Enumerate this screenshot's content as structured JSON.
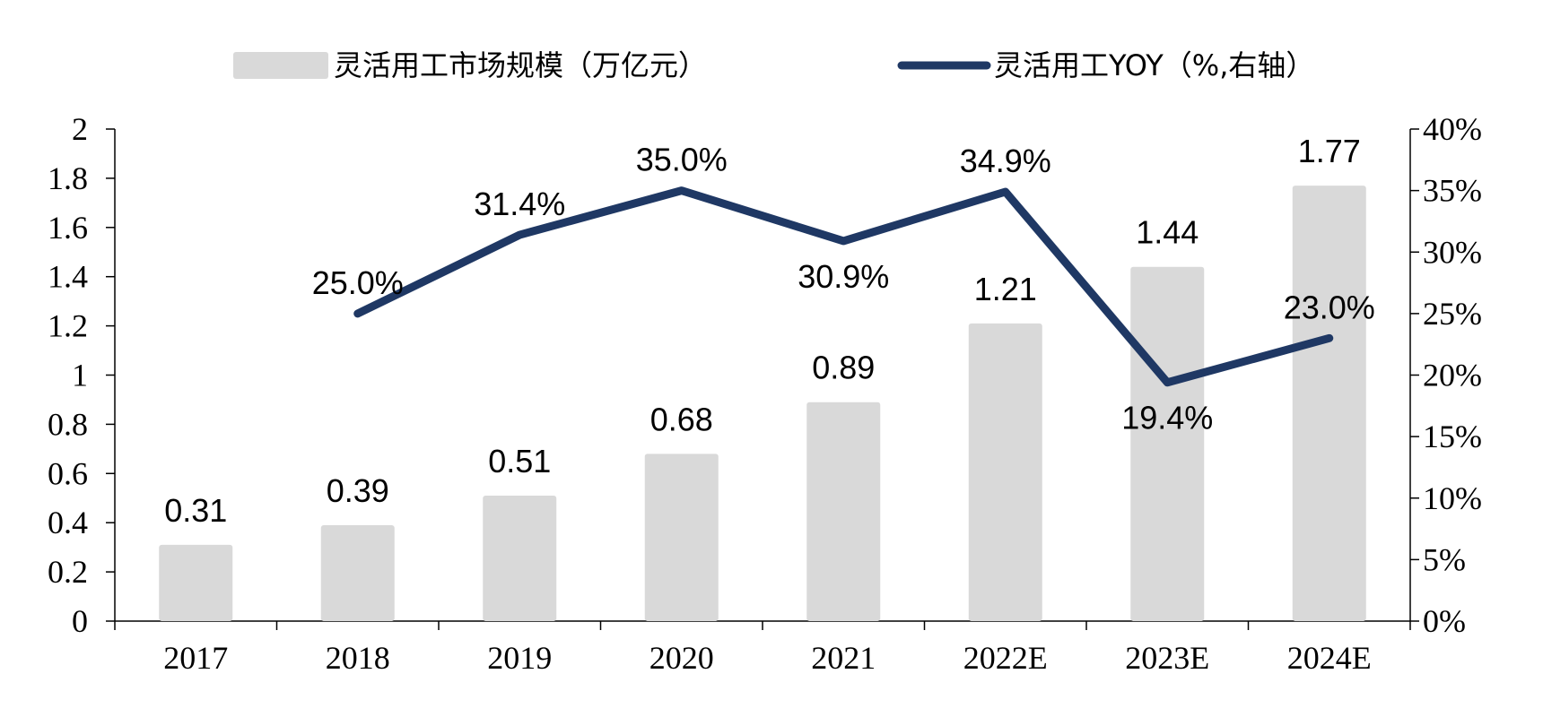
{
  "chart_data": {
    "type": "bar+line",
    "categories": [
      "2017",
      "2018",
      "2019",
      "2020",
      "2021",
      "2022E",
      "2023E",
      "2024E"
    ],
    "series": [
      {
        "name": "灵活用工市场规模（万亿元）",
        "kind": "bar",
        "axis": "left",
        "color": "#d9d9d9",
        "values": [
          0.31,
          0.39,
          0.51,
          0.68,
          0.89,
          1.21,
          1.44,
          1.77
        ],
        "labels": [
          "0.31",
          "0.39",
          "0.51",
          "0.68",
          "0.89",
          "1.21",
          "1.44",
          "1.77"
        ]
      },
      {
        "name": "灵活用工YOY（%,右轴）",
        "kind": "line",
        "axis": "right",
        "color": "#1f3864",
        "values": [
          null,
          25.0,
          31.4,
          35.0,
          30.9,
          34.9,
          19.4,
          23.0
        ],
        "labels": [
          null,
          "25.0%",
          "31.4%",
          "35.0%",
          "30.9%",
          "34.9%",
          "19.4%",
          "23.0%"
        ]
      }
    ],
    "y_left": {
      "range": [
        0,
        2
      ],
      "ticks": [
        "0",
        "0.2",
        "0.4",
        "0.6",
        "0.8",
        "1",
        "1.2",
        "1.4",
        "1.6",
        "1.8",
        "2"
      ]
    },
    "y_right": {
      "range": [
        0,
        40
      ],
      "ticks": [
        "0%",
        "5%",
        "10%",
        "15%",
        "20%",
        "25%",
        "30%",
        "35%",
        "40%"
      ]
    },
    "legend_position": "top",
    "grid": false
  }
}
